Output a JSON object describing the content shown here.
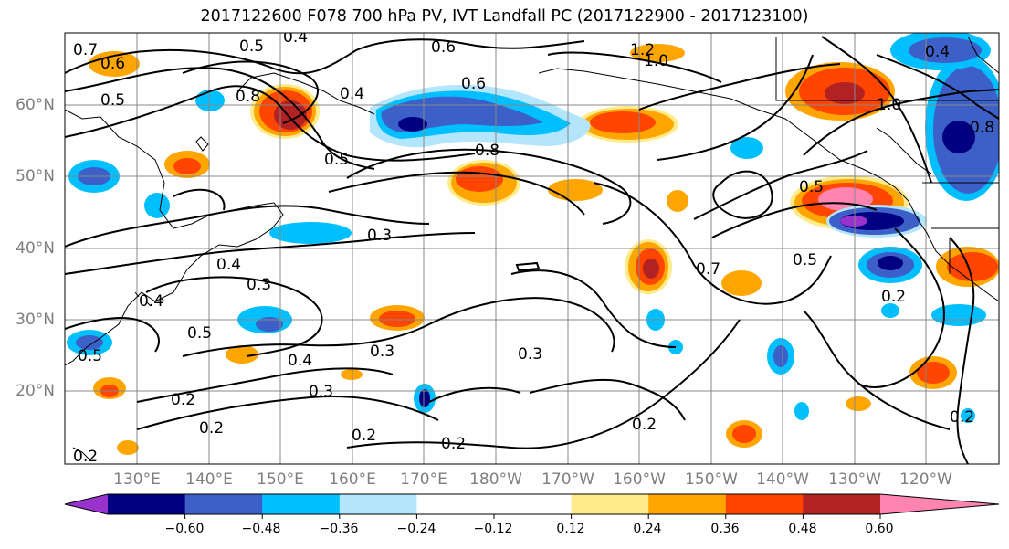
{
  "title": "2017122600 F078 700 hPa PV, IVT Landfall PC (2017122900 - 2017123100)",
  "lat_labels": [
    "60°N",
    "50°N",
    "40°N",
    "30°N",
    "20°N"
  ],
  "lon_labels": [
    "130°E",
    "140°E",
    "150°E",
    "160°E",
    "170°E",
    "180°W",
    "170°W",
    "160°W",
    "150°W",
    "140°W",
    "130°W",
    "120°W"
  ],
  "colorbar": {
    "colors": [
      "#9932cc",
      "#000080",
      "#3d5fc8",
      "#00bfff",
      "#b3e5fc",
      "#ffffff",
      "#ffffff",
      "#ffeb8a",
      "#ffa500",
      "#ff4500",
      "#b22222",
      "#ff85b0"
    ],
    "tick_labels": [
      "−0.60",
      "−0.48",
      "−0.36",
      "−0.24",
      "−0.12",
      "0.12",
      "0.24",
      "0.36",
      "0.48",
      "0.60"
    ]
  },
  "contour_labels": [
    "0.7",
    "0.6",
    "0.5",
    "0.4",
    "0.6",
    "1.2",
    "1.0",
    "0.5",
    "0.8",
    "0.4",
    "0.6",
    "0.4",
    "1.0",
    "0.8",
    "0.5",
    "0.8",
    "0.3",
    "0.4",
    "0.3",
    "0.4",
    "0.5",
    "0.5",
    "0.3",
    "0.4",
    "0.3",
    "0.3",
    "0.2",
    "0.2",
    "0.2",
    "0.2",
    "0.2",
    "0.2",
    "0.7",
    "0.5",
    "0.5",
    "0.2",
    "0.2"
  ]
}
